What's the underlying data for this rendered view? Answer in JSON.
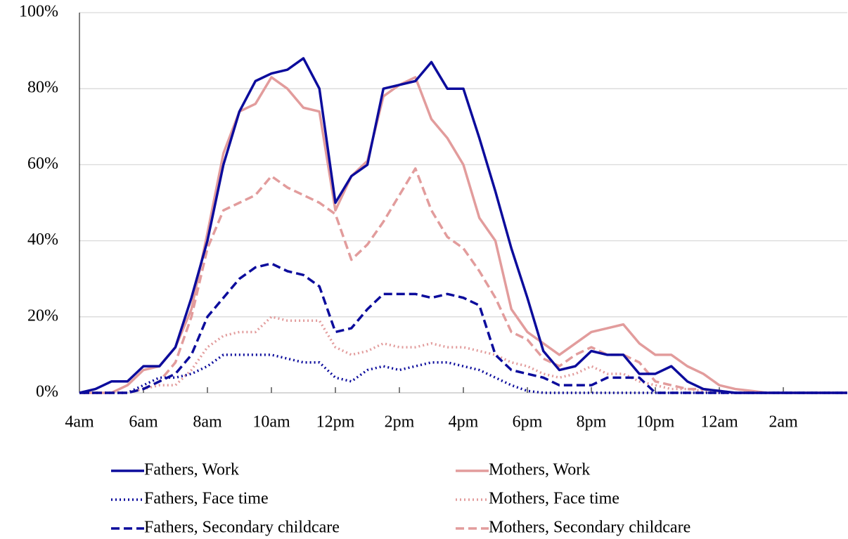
{
  "chart_data": {
    "type": "line",
    "x": [
      4,
      4.5,
      5,
      5.5,
      6,
      6.5,
      7,
      7.5,
      8,
      8.5,
      9,
      9.5,
      10,
      10.5,
      11,
      11.5,
      12,
      12.5,
      13,
      13.5,
      14,
      14.5,
      15,
      15.5,
      16,
      16.5,
      17,
      17.5,
      18,
      18.5,
      19,
      19.5,
      20,
      20.5,
      21,
      21.5,
      22,
      22.5,
      23,
      23.5,
      24,
      24.5,
      25,
      25.5,
      26,
      26.5,
      27,
      27.5,
      28
    ],
    "xlim": [
      4,
      28
    ],
    "xticks": [
      {
        "value": 4,
        "label": "4am"
      },
      {
        "value": 6,
        "label": "6am"
      },
      {
        "value": 8,
        "label": "8am"
      },
      {
        "value": 10,
        "label": "10am"
      },
      {
        "value": 12,
        "label": "12pm"
      },
      {
        "value": 14,
        "label": "2pm"
      },
      {
        "value": 16,
        "label": "4pm"
      },
      {
        "value": 18,
        "label": "6pm"
      },
      {
        "value": 20,
        "label": "8pm"
      },
      {
        "value": 22,
        "label": "10pm"
      },
      {
        "value": 24,
        "label": "12am"
      },
      {
        "value": 26,
        "label": "2am"
      }
    ],
    "ylim": [
      0,
      100
    ],
    "yticks": [
      {
        "value": 0,
        "label": "0%"
      },
      {
        "value": 20,
        "label": "20%"
      },
      {
        "value": 40,
        "label": "40%"
      },
      {
        "value": 60,
        "label": "60%"
      },
      {
        "value": 80,
        "label": "80%"
      },
      {
        "value": 100,
        "label": "100%"
      }
    ],
    "grid": true,
    "series": [
      {
        "name": "Fathers, Work",
        "color": "#0c0c9c",
        "dash": "solid",
        "values": [
          0,
          1,
          3,
          3,
          7,
          7,
          12,
          25,
          40,
          60,
          74,
          82,
          84,
          85,
          88,
          80,
          50,
          57,
          60,
          80,
          81,
          82,
          87,
          80,
          80,
          67,
          53,
          38,
          25,
          11,
          6,
          7,
          11,
          10,
          10,
          5,
          5,
          7,
          3,
          1,
          0.5,
          0,
          0,
          0,
          0,
          0,
          0,
          0,
          0
        ]
      },
      {
        "name": "Mothers, Work",
        "color": "#e29c9c",
        "dash": "solid",
        "values": [
          0,
          0,
          0,
          2,
          6,
          7,
          12,
          22,
          42,
          63,
          74,
          76,
          83,
          80,
          75,
          74,
          48,
          57,
          61,
          78,
          81,
          83,
          72,
          67,
          60,
          46,
          40,
          22,
          16,
          13,
          10,
          13,
          16,
          17,
          18,
          13,
          10,
          10,
          7,
          5,
          2,
          1,
          0.5,
          0,
          0,
          0,
          0,
          0,
          0
        ]
      },
      {
        "name": "Fathers, Face time",
        "color": "#0c0c9c",
        "dash": "dotted",
        "values": [
          0,
          0,
          0,
          0,
          2,
          4,
          4,
          5,
          7,
          10,
          10,
          10,
          10,
          9,
          8,
          8,
          4,
          3,
          6,
          7,
          6,
          7,
          8,
          8,
          7,
          6,
          4,
          2,
          0.5,
          0,
          0,
          0,
          0,
          0,
          0,
          0,
          0,
          0,
          0,
          0,
          0,
          0,
          0,
          0,
          0,
          0,
          0,
          0,
          0
        ]
      },
      {
        "name": "Mothers, Face time",
        "color": "#e29c9c",
        "dash": "dotted",
        "values": [
          0,
          0,
          0,
          0,
          1,
          2,
          2,
          6,
          12,
          15,
          16,
          16,
          20,
          19,
          19,
          19,
          12,
          10,
          11,
          13,
          12,
          12,
          13,
          12,
          12,
          11,
          10,
          8,
          7,
          5,
          4,
          5,
          7,
          5,
          5,
          3,
          2,
          1,
          1,
          0.5,
          0,
          0,
          0,
          0,
          0,
          0,
          0,
          0,
          0
        ]
      },
      {
        "name": "Fathers, Secondary childcare",
        "color": "#0c0c9c",
        "dash": "dashed",
        "values": [
          0,
          0,
          0,
          0,
          1,
          3,
          5,
          10,
          20,
          25,
          30,
          33,
          34,
          32,
          31,
          28,
          16,
          17,
          22,
          26,
          26,
          26,
          25,
          26,
          25,
          23,
          10,
          6,
          5,
          4,
          2,
          2,
          2,
          4,
          4,
          4,
          0,
          0,
          0,
          0,
          0,
          0,
          0,
          0,
          0,
          0,
          0,
          0,
          0
        ]
      },
      {
        "name": "Mothers, Secondary childcare",
        "color": "#e29c9c",
        "dash": "dashed",
        "values": [
          0,
          0,
          0,
          0,
          1,
          3,
          8,
          20,
          38,
          48,
          50,
          52,
          57,
          54,
          52,
          50,
          47,
          35,
          39,
          45,
          52,
          59,
          48,
          41,
          38,
          32,
          25,
          16,
          14,
          9,
          7,
          10,
          12,
          10,
          10,
          8,
          3,
          2,
          1,
          1,
          0.5,
          0,
          0,
          0,
          0,
          0,
          0,
          0,
          0
        ]
      }
    ]
  }
}
